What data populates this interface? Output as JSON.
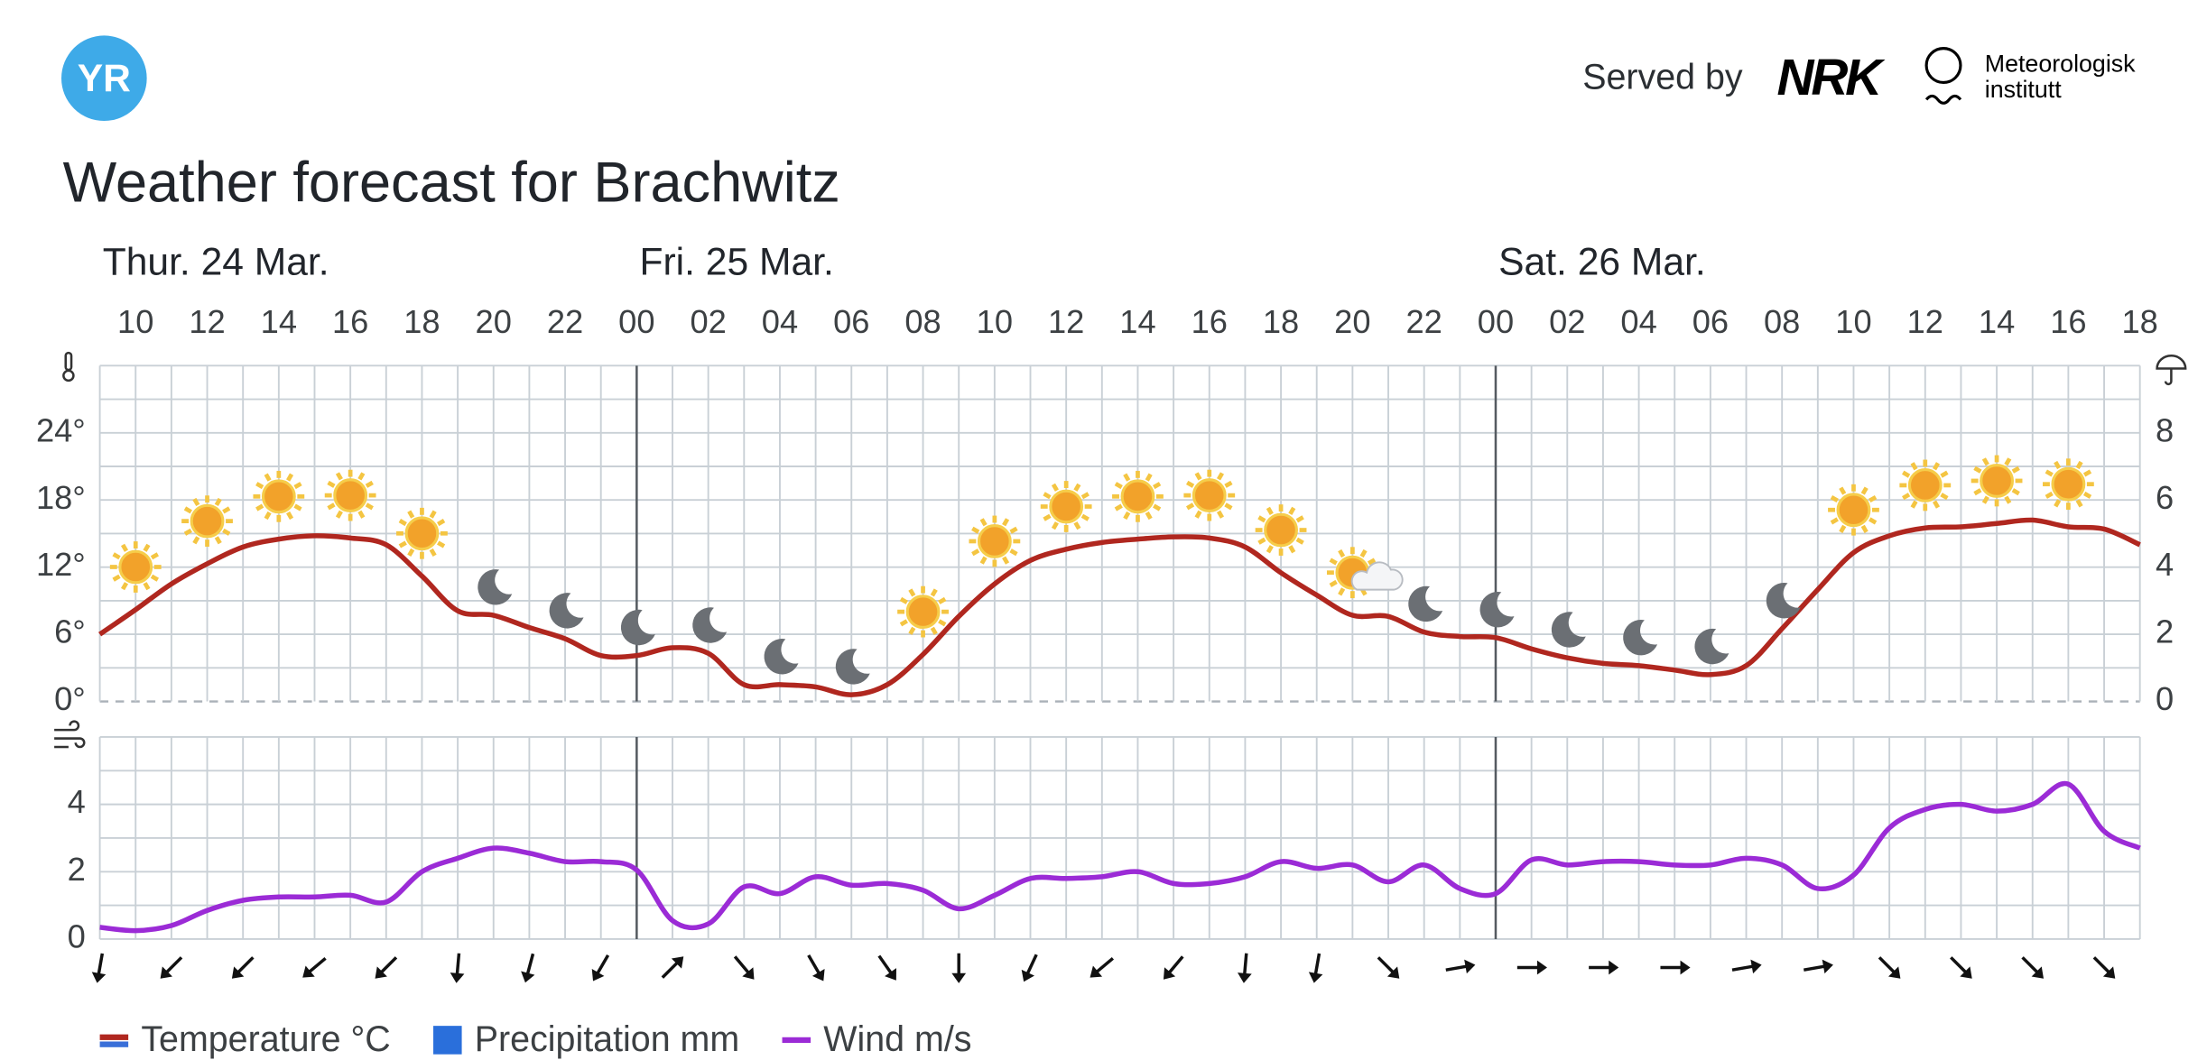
{
  "header": {
    "logo": "YR",
    "served_by": "Served by",
    "partner": "NRK",
    "institute_line1": "Meteorologisk",
    "institute_line2": "institutt",
    "title": "Weather forecast for Brachwitz"
  },
  "chart_data": [
    {
      "type": "line",
      "days": [
        "Thur. 24 Mar.",
        "Fri. 25 Mar.",
        "Sat. 26 Mar."
      ],
      "categories": [
        null,
        "10",
        null,
        "12",
        null,
        "14",
        null,
        "16",
        null,
        "18",
        null,
        "20",
        null,
        "22",
        null,
        "00",
        null,
        "02",
        null,
        "04",
        null,
        "06",
        null,
        "08",
        null,
        "10",
        null,
        "12",
        null,
        "14",
        null,
        "16",
        null,
        "18",
        null,
        "20",
        null,
        "22",
        null,
        "00",
        null,
        "02",
        null,
        "04",
        null,
        "06",
        null,
        "08",
        null,
        "10",
        null,
        "12",
        null,
        "14",
        null,
        "16",
        null,
        "18"
      ],
      "ylim": [
        0,
        30
      ],
      "yticks": [
        {
          "value": 0,
          "label": "0°"
        },
        {
          "value": 6,
          "label": "6°"
        },
        {
          "value": 12,
          "label": "12°"
        },
        {
          "value": 18,
          "label": "18°"
        },
        {
          "value": 24,
          "label": "24°"
        }
      ],
      "y2lim": [
        0,
        10
      ],
      "y2ticks": [
        0,
        2,
        4,
        6,
        8
      ],
      "grid": true,
      "series": [
        {
          "name": "Temperature °C",
          "color": "#b0271f",
          "values": [
            6.0,
            8.2,
            10.5,
            12.3,
            13.8,
            14.5,
            14.8,
            14.6,
            14.0,
            11.2,
            8.1,
            7.7,
            6.6,
            5.6,
            4.1,
            4.1,
            4.8,
            4.3,
            1.5,
            1.5,
            1.3,
            0.6,
            1.5,
            4.2,
            7.6,
            10.5,
            12.6,
            13.6,
            14.2,
            14.5,
            14.7,
            14.6,
            13.8,
            11.5,
            9.5,
            7.7,
            7.6,
            6.2,
            5.8,
            5.7,
            4.7,
            3.9,
            3.4,
            3.2,
            2.8,
            2.4,
            3.2,
            6.5,
            10.0,
            13.3,
            14.8,
            15.5,
            15.6,
            15.9,
            16.2,
            15.6,
            15.4,
            14.0
          ]
        },
        {
          "name": "Precipitation mm",
          "color": "#2a6fdb",
          "axis": "y2",
          "type": "bar",
          "values": [
            0,
            0,
            0,
            0,
            0,
            0,
            0,
            0,
            0,
            0,
            0,
            0,
            0,
            0,
            0,
            0,
            0,
            0,
            0,
            0,
            0,
            0,
            0,
            0,
            0,
            0,
            0,
            0,
            0,
            0,
            0,
            0,
            0,
            0,
            0,
            0,
            0,
            0,
            0,
            0,
            0,
            0,
            0,
            0,
            0,
            0,
            0,
            0,
            0,
            0,
            0,
            0,
            0,
            0,
            0,
            0,
            0,
            0
          ]
        }
      ]
    },
    {
      "type": "line",
      "ylim": [
        0,
        6
      ],
      "yticks": [
        0,
        2,
        4
      ],
      "grid": true,
      "series": [
        {
          "name": "Wind m/s",
          "color": "#9b2bd6",
          "values": [
            0.35,
            0.25,
            0.4,
            0.85,
            1.15,
            1.25,
            1.25,
            1.3,
            1.1,
            2.0,
            2.4,
            2.7,
            2.55,
            2.3,
            2.3,
            2.05,
            0.55,
            0.45,
            1.55,
            1.35,
            1.85,
            1.6,
            1.65,
            1.45,
            0.9,
            1.3,
            1.8,
            1.8,
            1.85,
            2.0,
            1.65,
            1.65,
            1.85,
            2.3,
            2.1,
            2.2,
            1.7,
            2.2,
            1.5,
            1.35,
            2.35,
            2.2,
            2.3,
            2.3,
            2.2,
            2.2,
            2.4,
            2.2,
            1.5,
            1.9,
            3.3,
            3.85,
            4.0,
            3.8,
            4.0,
            4.6,
            3.2,
            2.7
          ]
        }
      ]
    }
  ]
}
